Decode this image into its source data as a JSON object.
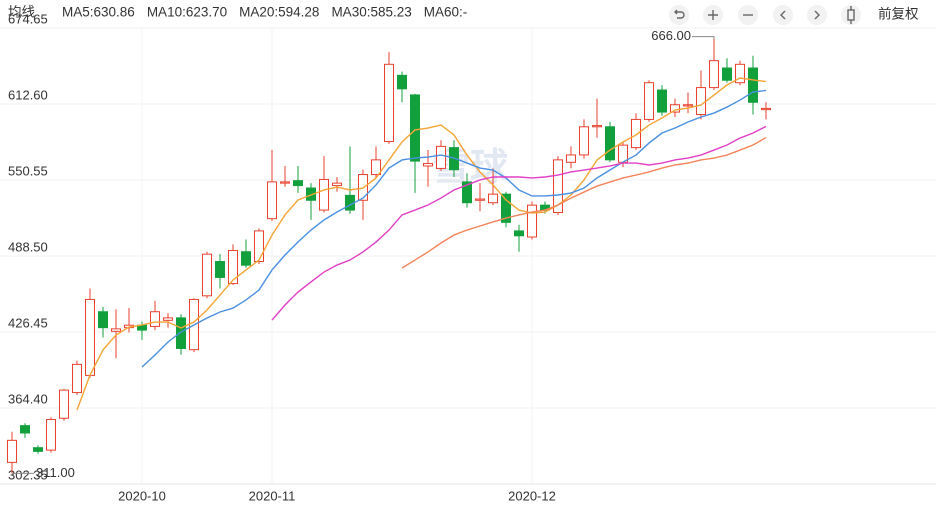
{
  "chart_data": {
    "type": "candlestick",
    "ma_label": "均线",
    "adjust_label": "前复权",
    "watermark": "雪球",
    "categories": [
      null,
      null,
      null,
      null,
      null,
      null,
      null,
      null,
      null,
      null,
      "2020-10",
      null,
      null,
      null,
      null,
      null,
      null,
      null,
      null,
      null,
      "2020-11",
      null,
      null,
      null,
      null,
      null,
      null,
      null,
      null,
      null,
      null,
      null,
      null,
      null,
      null,
      null,
      null,
      null,
      null,
      null,
      "2020-12",
      null,
      null,
      null,
      null,
      null,
      null,
      null,
      null,
      null,
      null,
      null,
      null,
      null,
      null,
      null,
      null,
      null,
      null
    ],
    "candles": {
      "up_color": "#e8412e",
      "down_color": "#12a03c",
      "open": [
        320,
        350,
        332,
        330,
        356,
        377,
        391,
        443,
        427,
        430,
        432,
        431,
        436,
        438,
        412,
        456,
        484,
        466,
        492,
        484,
        519,
        548,
        550,
        544,
        526,
        546,
        538,
        534,
        555,
        582,
        636,
        620,
        562,
        560,
        577,
        549,
        534,
        532,
        539,
        509,
        504,
        530,
        524,
        565,
        571,
        594,
        594,
        565,
        577,
        600,
        624,
        606,
        611,
        604,
        626,
        642,
        630,
        642,
        608
      ],
      "close": [
        338,
        344,
        329,
        355,
        379,
        400,
        453,
        430,
        429,
        432,
        428,
        443,
        438,
        413,
        453,
        490,
        471,
        493,
        481,
        509,
        549,
        549,
        546,
        534,
        551,
        548,
        526,
        555,
        567,
        645,
        625,
        566,
        564,
        578,
        559,
        532,
        535,
        539,
        516,
        505,
        530,
        526,
        567,
        571,
        594,
        595,
        567,
        579,
        600,
        630,
        606,
        612,
        612,
        626,
        648,
        632,
        645,
        614,
        609
      ],
      "low": [
        311,
        340,
        327,
        328,
        354,
        375,
        389,
        422,
        405,
        426,
        420,
        428,
        430,
        408,
        410,
        454,
        462,
        465,
        479,
        482,
        517,
        545,
        540,
        518,
        524,
        541,
        523,
        518,
        552,
        580,
        614,
        540,
        545,
        558,
        553,
        528,
        525,
        530,
        512,
        492,
        502,
        523,
        522,
        560,
        568,
        585,
        565,
        561,
        575,
        598,
        603,
        602,
        605,
        600,
        624,
        630,
        628,
        604,
        600
      ],
      "high": [
        345,
        352,
        334,
        357,
        380,
        403,
        462,
        447,
        445,
        446,
        435,
        452,
        442,
        441,
        454,
        492,
        490,
        498,
        502,
        511,
        575,
        562,
        562,
        548,
        570,
        553,
        578,
        559,
        578,
        655,
        639,
        621,
        575,
        583,
        583,
        556,
        548,
        560,
        541,
        514,
        533,
        533,
        570,
        578,
        600,
        617,
        598,
        582,
        605,
        632,
        628,
        617,
        622,
        640,
        666,
        650,
        648,
        652,
        614
      ]
    },
    "series": [
      {
        "name": "MA5:630.86",
        "color": "#f5a435",
        "values": [
          null,
          null,
          null,
          null,
          null,
          362.8,
          391.3,
          411.8,
          424.0,
          430.5,
          432.2,
          434.6,
          434.6,
          429.7,
          434.6,
          444.4,
          456.6,
          468.9,
          477.1,
          485.2,
          505.6,
          522.0,
          534.2,
          538.3,
          542.4,
          544.8,
          542.4,
          544.0,
          552.2,
          566.9,
          581.6,
          591.4,
          593.0,
          595.4,
          587.3,
          570.9,
          557.1,
          546.5,
          534.2,
          526.0,
          523.6,
          524.4,
          530.1,
          538.3,
          550.6,
          566.9,
          575.0,
          581.6,
          587.3,
          595.4,
          601.2,
          607.7,
          609.3,
          611.8,
          619.9,
          628.1,
          633.8,
          632.2,
          630.9
        ]
      },
      {
        "name": "MA10:623.70",
        "color": "#4a90e2",
        "values": [
          null,
          null,
          null,
          null,
          null,
          null,
          null,
          null,
          null,
          null,
          397.9,
          407.7,
          418.3,
          426.4,
          432.2,
          437.9,
          442.8,
          446.0,
          452.6,
          460.7,
          477.1,
          489.3,
          499.9,
          509.7,
          517.9,
          524.4,
          530.1,
          535.8,
          546.5,
          560.3,
          566.9,
          568.5,
          569.3,
          570.9,
          568.5,
          564.4,
          560.3,
          558.7,
          552.2,
          542.4,
          537.5,
          537.5,
          538.3,
          539.9,
          544.0,
          552.2,
          558.7,
          565.2,
          570.9,
          580.7,
          588.9,
          593.0,
          597.9,
          602.0,
          605.2,
          610.1,
          615.8,
          622.4,
          623.7
        ]
      },
      {
        "name": "MA20:594.28",
        "color": "#e23fc6",
        "values": [
          null,
          null,
          null,
          null,
          null,
          null,
          null,
          null,
          null,
          null,
          null,
          null,
          null,
          null,
          null,
          null,
          null,
          null,
          null,
          null,
          436.2,
          448.5,
          459.1,
          467.3,
          475.4,
          481.1,
          485.2,
          491.8,
          499.9,
          509.7,
          522.0,
          526.0,
          530.1,
          535.8,
          542.4,
          546.5,
          550.6,
          553.0,
          553.0,
          553.0,
          552.2,
          553.0,
          554.6,
          557.1,
          558.7,
          560.3,
          562.0,
          564.4,
          564.4,
          562.8,
          564.4,
          566.9,
          568.5,
          570.9,
          575.0,
          579.1,
          584.8,
          588.9,
          594.3
        ]
      },
      {
        "name": "MA30:585.23",
        "color": "#f5845a",
        "values": [
          null,
          null,
          null,
          null,
          null,
          null,
          null,
          null,
          null,
          null,
          null,
          null,
          null,
          null,
          null,
          null,
          null,
          null,
          null,
          null,
          null,
          null,
          null,
          null,
          null,
          null,
          null,
          null,
          null,
          null,
          478.7,
          485.2,
          491.8,
          499.1,
          505.6,
          509.7,
          513.0,
          516.3,
          519.5,
          522.0,
          524.4,
          526.0,
          530.1,
          535.8,
          540.7,
          545.6,
          548.9,
          552.2,
          554.6,
          557.1,
          560.3,
          562.8,
          564.4,
          566.9,
          568.5,
          570.9,
          575.0,
          579.1,
          585.2
        ]
      },
      {
        "name": "MA60:-",
        "color": "#3cc58a",
        "values": [
          null,
          null,
          null,
          null,
          null,
          null,
          null,
          null,
          null,
          null,
          null,
          null,
          null,
          null,
          null,
          null,
          null,
          null,
          null,
          null,
          null,
          null,
          null,
          null,
          null,
          null,
          null,
          null,
          null,
          null,
          null,
          null,
          null,
          null,
          null,
          null,
          null,
          null,
          null,
          null,
          null,
          null,
          null,
          null,
          null,
          null,
          null,
          null,
          null,
          null,
          null,
          null,
          null,
          null,
          null,
          null,
          null,
          null,
          null
        ]
      }
    ],
    "annotations": [
      {
        "label": "666.00",
        "value": 666,
        "index": 54
      },
      {
        "label": "311.00",
        "value": 311,
        "index": 0
      }
    ],
    "ylim": [
      302.35,
      674.65
    ],
    "yticks": [
      302.35,
      {
        "value": 364.4,
        "label": "364.40"
      },
      426.45,
      {
        "value": 488.5,
        "label": "488.50"
      },
      550.55,
      {
        "value": 612.6,
        "label": "612.60"
      },
      674.65
    ],
    "grid": true
  }
}
